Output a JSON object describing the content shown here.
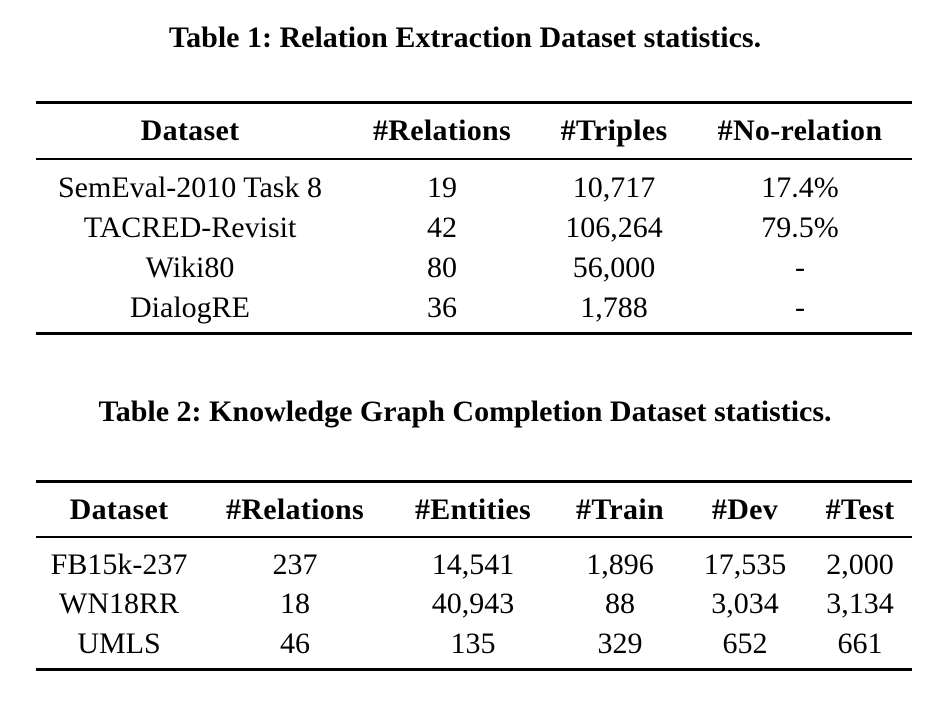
{
  "page": {
    "background_color": "#ffffff",
    "text_color": "#000000"
  },
  "table1": {
    "caption": "Table 1: Relation Extraction Dataset statistics.",
    "headers": [
      "Dataset",
      "#Relations",
      "#Triples",
      "#No-relation"
    ],
    "rows": [
      [
        "SemEval-2010 Task 8",
        "19",
        "10,717",
        "17.4%"
      ],
      [
        "TACRED-Revisit",
        "42",
        "106,264",
        "79.5%"
      ],
      [
        "Wiki80",
        "80",
        "56,000",
        "-"
      ],
      [
        "DialogRE",
        "36",
        "1,788",
        "-"
      ]
    ]
  },
  "table2": {
    "caption": "Table 2: Knowledge Graph Completion Dataset statistics.",
    "headers": [
      "Dataset",
      "#Relations",
      "#Entities",
      "#Train",
      "#Dev",
      "#Test"
    ],
    "rows": [
      [
        "FB15k-237",
        "237",
        "14,541",
        "1,896",
        "17,535",
        "2,000"
      ],
      [
        "WN18RR",
        "18",
        "40,943",
        "88",
        "3,034",
        "3,134"
      ],
      [
        "UMLS",
        "46",
        "135",
        "329",
        "652",
        "661"
      ]
    ]
  }
}
